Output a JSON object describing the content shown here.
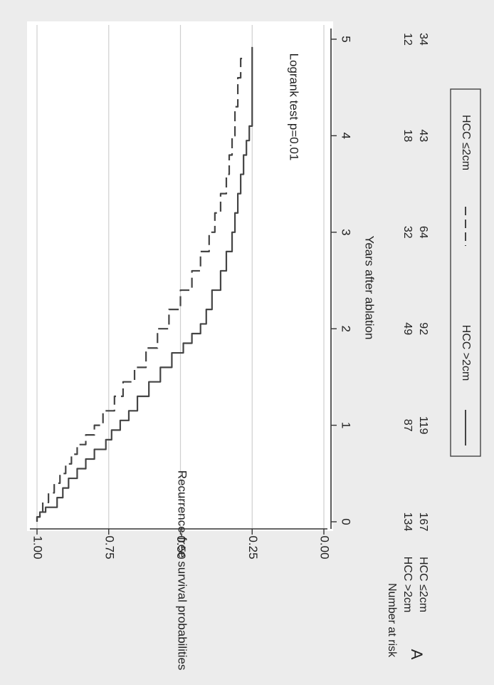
{
  "panel_label": "A",
  "chart_data": {
    "type": "line",
    "title": "",
    "xlabel": "Years after ablation",
    "ylabel": "Recurrence-free survival probabilities",
    "xlim": [
      0,
      5
    ],
    "ylim": [
      0,
      1
    ],
    "x_ticks": [
      0,
      1,
      2,
      3,
      4,
      5
    ],
    "y_ticks": [
      "0.00",
      "0.25",
      "0.50",
      "0.75",
      "1.00"
    ],
    "grid": true,
    "annotation": "Logrank test p=0.01",
    "legend_position": "bottom",
    "series": [
      {
        "name": "HCC >2cm",
        "style": "solid",
        "x": [
          0,
          0.05,
          0.1,
          0.15,
          0.25,
          0.35,
          0.45,
          0.55,
          0.65,
          0.75,
          0.85,
          0.95,
          1.05,
          1.15,
          1.3,
          1.45,
          1.6,
          1.75,
          1.85,
          1.95,
          2.05,
          2.2,
          2.4,
          2.6,
          2.8,
          3.0,
          3.2,
          3.4,
          3.6,
          3.8,
          3.95,
          4.1,
          4.5,
          4.92
        ],
        "y": [
          1.0,
          0.99,
          0.97,
          0.93,
          0.91,
          0.89,
          0.86,
          0.83,
          0.8,
          0.76,
          0.74,
          0.71,
          0.68,
          0.65,
          0.61,
          0.57,
          0.53,
          0.49,
          0.46,
          0.43,
          0.41,
          0.39,
          0.36,
          0.34,
          0.32,
          0.31,
          0.3,
          0.29,
          0.28,
          0.27,
          0.26,
          0.25,
          0.25,
          0.25
        ]
      },
      {
        "name": "HCC ≤2cm",
        "style": "dashed",
        "x": [
          0,
          0.05,
          0.1,
          0.2,
          0.3,
          0.4,
          0.5,
          0.6,
          0.7,
          0.8,
          0.9,
          1.0,
          1.15,
          1.3,
          1.45,
          1.6,
          1.8,
          2.0,
          2.2,
          2.4,
          2.6,
          2.8,
          3.0,
          3.2,
          3.4,
          3.6,
          3.8,
          4.0,
          4.3,
          4.6,
          4.8
        ],
        "y": [
          1.0,
          0.99,
          0.98,
          0.96,
          0.94,
          0.92,
          0.9,
          0.88,
          0.86,
          0.83,
          0.8,
          0.77,
          0.73,
          0.7,
          0.66,
          0.62,
          0.58,
          0.54,
          0.5,
          0.46,
          0.43,
          0.4,
          0.38,
          0.36,
          0.34,
          0.33,
          0.32,
          0.31,
          0.3,
          0.29,
          0.28
        ]
      }
    ],
    "risk_table": {
      "title": "Number at risk",
      "times": [
        0,
        1,
        2,
        3,
        4,
        5
      ],
      "rows": [
        {
          "label": "HCC >2cm",
          "values": [
            "134",
            "87",
            "49",
            "32",
            "18",
            "12"
          ]
        },
        {
          "label": "HCC ≤2cm",
          "values": [
            "167",
            "119",
            "92",
            "64",
            "43",
            "34"
          ]
        }
      ]
    }
  }
}
